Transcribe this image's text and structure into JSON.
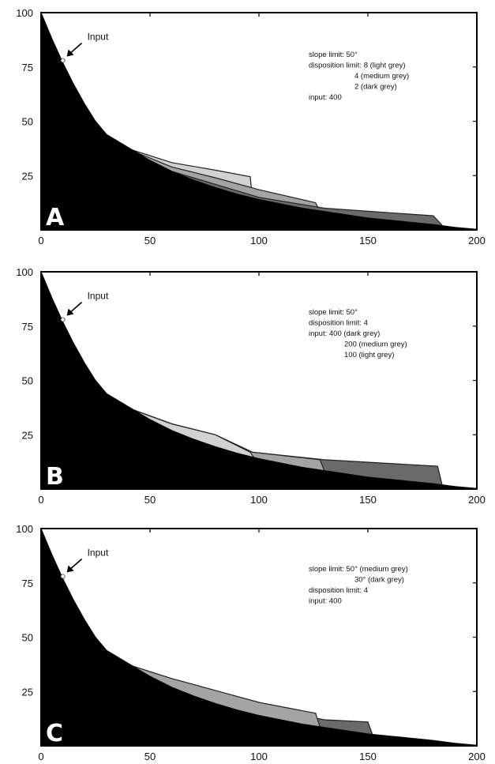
{
  "chart_data": [
    {
      "type": "area",
      "panel_label": "A",
      "xlim": [
        0,
        200
      ],
      "ylim": [
        0,
        100
      ],
      "x_ticks": [
        "0",
        "50",
        "100",
        "150",
        "200"
      ],
      "y_ticks": [
        "25",
        "50",
        "75",
        "100"
      ],
      "input_label": "Input",
      "input_point": {
        "x": 10,
        "y": 78
      },
      "annotation_lines": [
        "slope limit: 50°",
        "disposition limit: 8 (light grey)",
        "4 (medium grey)",
        "2 (dark grey)",
        "input: 400"
      ],
      "terrain": {
        "x": [
          0,
          5,
          10,
          15,
          20,
          25,
          30,
          35,
          40,
          50,
          60,
          70,
          80,
          90,
          100,
          110,
          120,
          130,
          140,
          150,
          160,
          170,
          180,
          190,
          200
        ],
        "y": [
          100,
          88,
          77,
          67,
          58,
          50,
          44,
          41,
          38,
          32,
          27,
          23,
          19.5,
          16.5,
          14,
          12,
          10,
          8.5,
          7,
          5.5,
          4.5,
          3.5,
          2.5,
          1.2,
          0.3
        ]
      },
      "series": [
        {
          "name": "8 (light grey)",
          "color": "#d2d2d2",
          "top_x": [
            38,
            60,
            80,
            96,
            97
          ],
          "top_y": [
            38,
            31,
            27.5,
            24.5,
            14
          ]
        },
        {
          "name": "4 (medium grey)",
          "color": "#a4a4a4",
          "top_x": [
            38,
            60,
            80,
            100,
            126,
            128
          ],
          "top_y": [
            38,
            29,
            24,
            18.5,
            12.5,
            8.5
          ]
        },
        {
          "name": "2 (dark grey)",
          "color": "#6a6a6a",
          "top_x": [
            38,
            60,
            80,
            100,
            130,
            180,
            184
          ],
          "top_y": [
            38,
            27,
            21,
            15,
            10,
            6.5,
            2.2
          ]
        }
      ]
    },
    {
      "type": "area",
      "panel_label": "B",
      "xlim": [
        0,
        200
      ],
      "ylim": [
        0,
        100
      ],
      "x_ticks": [
        "0",
        "50",
        "100",
        "150",
        "200"
      ],
      "y_ticks": [
        "25",
        "50",
        "75",
        "100"
      ],
      "input_label": "Input",
      "input_point": {
        "x": 10,
        "y": 78
      },
      "annotation_lines": [
        "slope limit: 50°",
        "disposition limit: 4",
        "input: 400 (dark grey)",
        "200 (medium grey)",
        "100 (light grey)"
      ],
      "terrain": {
        "x": [
          0,
          5,
          10,
          15,
          20,
          25,
          30,
          35,
          40,
          50,
          60,
          70,
          80,
          90,
          100,
          110,
          120,
          130,
          140,
          150,
          160,
          170,
          180,
          190,
          200
        ],
        "y": [
          100,
          88,
          77,
          67,
          58,
          50,
          44,
          41,
          38,
          32,
          27,
          23,
          19.5,
          16.5,
          14,
          12,
          10,
          8.5,
          7,
          5.5,
          4.5,
          3.5,
          2.5,
          1.2,
          0.3
        ]
      },
      "series": [
        {
          "name": "400 (dark grey)",
          "color": "#6a6a6a",
          "top_x": [
            38,
            60,
            80,
            97,
            130,
            182,
            184
          ],
          "top_y": [
            38,
            30,
            25,
            17,
            13.5,
            10.5,
            2.2
          ]
        },
        {
          "name": "200 (medium grey)",
          "color": "#a4a4a4",
          "top_x": [
            38,
            60,
            80,
            97,
            128,
            130
          ],
          "top_y": [
            38,
            30,
            25,
            17,
            13.5,
            8.5
          ]
        },
        {
          "name": "100 (light grey)",
          "color": "#d2d2d2",
          "top_x": [
            38,
            60,
            80,
            96,
            98
          ],
          "top_y": [
            38,
            30,
            25,
            17,
            14
          ]
        }
      ]
    },
    {
      "type": "area",
      "panel_label": "C",
      "xlim": [
        0,
        200
      ],
      "ylim": [
        0,
        100
      ],
      "x_ticks": [
        "0",
        "50",
        "100",
        "150",
        "200"
      ],
      "y_ticks": [
        "25",
        "50",
        "75",
        "100"
      ],
      "input_label": "Input",
      "input_point": {
        "x": 10,
        "y": 78
      },
      "annotation_lines": [
        "slope limit: 50° (medium grey)",
        "30° (dark grey)",
        "disposition limit: 4",
        "input: 400"
      ],
      "terrain": {
        "x": [
          0,
          5,
          10,
          15,
          20,
          25,
          30,
          35,
          40,
          50,
          60,
          70,
          80,
          90,
          100,
          110,
          120,
          130,
          140,
          150,
          160,
          170,
          180,
          190,
          200
        ],
        "y": [
          100,
          88,
          77,
          67,
          58,
          50,
          44,
          41,
          38,
          32,
          27,
          23,
          19.5,
          16.5,
          14,
          12,
          10,
          8.5,
          7,
          5.5,
          4.5,
          3.5,
          2.5,
          1.2,
          0.3
        ]
      },
      "series": [
        {
          "name": "30° (dark grey)",
          "color": "#6a6a6a",
          "top_x": [
            38,
            60,
            80,
            100,
            130,
            150,
            152
          ],
          "top_y": [
            38,
            30,
            24,
            18,
            12,
            11,
            5.5
          ]
        },
        {
          "name": "50° (medium grey)",
          "color": "#a4a4a4",
          "top_x": [
            38,
            60,
            80,
            100,
            126,
            128
          ],
          "top_y": [
            38,
            31,
            25.5,
            20,
            15,
            8.5
          ]
        }
      ]
    }
  ]
}
